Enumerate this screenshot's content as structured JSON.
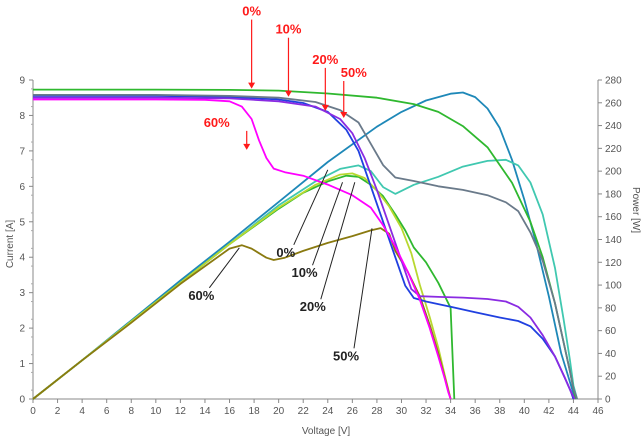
{
  "chart_data": {
    "type": "line",
    "title": "",
    "xlabel": "Voltage [V]",
    "ylabel": "Current [A]",
    "y2label": "Power [W]",
    "xlim": [
      0,
      46
    ],
    "ylim": [
      0,
      9
    ],
    "y2lim": [
      0,
      280
    ],
    "x_ticks": [
      "0",
      "2",
      "4",
      "6",
      "8",
      "10",
      "12",
      "14",
      "16",
      "18",
      "20",
      "22",
      "24",
      "26",
      "28",
      "30",
      "32",
      "34",
      "36",
      "38",
      "40",
      "42",
      "44",
      "46"
    ],
    "y_ticks": [
      "0",
      "1",
      "2",
      "3",
      "4",
      "5",
      "6",
      "7",
      "8",
      "9"
    ],
    "y2_ticks": [
      "0",
      "20",
      "40",
      "60",
      "80",
      "100",
      "120",
      "140",
      "160",
      "180",
      "200",
      "220",
      "240",
      "260",
      "280"
    ],
    "grid": false,
    "iv_curves": [
      {
        "shading": "0%",
        "color": "#2fb82f",
        "points": [
          [
            0,
            8.73
          ],
          [
            10,
            8.73
          ],
          [
            16,
            8.72
          ],
          [
            20,
            8.7
          ],
          [
            24,
            8.62
          ],
          [
            28,
            8.5
          ],
          [
            31,
            8.32
          ],
          [
            33,
            8.1
          ],
          [
            35,
            7.7
          ],
          [
            37,
            7.1
          ],
          [
            39,
            6.1
          ],
          [
            40.5,
            5.0
          ],
          [
            41.5,
            4.0
          ],
          [
            42.5,
            2.7
          ],
          [
            43.2,
            1.6
          ],
          [
            43.7,
            0.8
          ],
          [
            44,
            0.3
          ],
          [
            44.2,
            0
          ]
        ]
      },
      {
        "shading": "10%",
        "color": "#2040e0",
        "points": [
          [
            0,
            8.55
          ],
          [
            10,
            8.55
          ],
          [
            16,
            8.52
          ],
          [
            20,
            8.45
          ],
          [
            22,
            8.35
          ],
          [
            24,
            8.1
          ],
          [
            25.5,
            7.6
          ],
          [
            26.5,
            7.0
          ],
          [
            27.5,
            6.0
          ],
          [
            28.5,
            5.0
          ],
          [
            29.5,
            4.0
          ],
          [
            30.3,
            3.2
          ],
          [
            31,
            2.85
          ],
          [
            32,
            2.75
          ],
          [
            34,
            2.6
          ],
          [
            36,
            2.45
          ],
          [
            38,
            2.3
          ],
          [
            39.5,
            2.2
          ],
          [
            40.5,
            2.05
          ],
          [
            41.5,
            1.7
          ],
          [
            42.5,
            1.2
          ],
          [
            43.3,
            0.6
          ],
          [
            43.8,
            0.2
          ],
          [
            44,
            0
          ]
        ]
      },
      {
        "shading": "20%",
        "color": "#6a7a8a",
        "points": [
          [
            0,
            8.58
          ],
          [
            10,
            8.58
          ],
          [
            16,
            8.55
          ],
          [
            20,
            8.5
          ],
          [
            23,
            8.38
          ],
          [
            25,
            8.15
          ],
          [
            26.5,
            7.8
          ],
          [
            27.5,
            7.2
          ],
          [
            28.5,
            6.6
          ],
          [
            29.5,
            6.25
          ],
          [
            31,
            6.15
          ],
          [
            33,
            6.0
          ],
          [
            35,
            5.9
          ],
          [
            37,
            5.75
          ],
          [
            38.5,
            5.55
          ],
          [
            39.5,
            5.3
          ],
          [
            40.5,
            4.7
          ],
          [
            41.5,
            3.9
          ],
          [
            42.5,
            2.7
          ],
          [
            43.2,
            1.6
          ],
          [
            43.7,
            0.8
          ],
          [
            44,
            0.3
          ],
          [
            44.3,
            0
          ]
        ]
      },
      {
        "shading": "50%",
        "color": "#8a2be2",
        "points": [
          [
            0,
            8.5
          ],
          [
            10,
            8.5
          ],
          [
            16,
            8.48
          ],
          [
            20,
            8.4
          ],
          [
            23,
            8.25
          ],
          [
            25,
            7.9
          ],
          [
            26,
            7.5
          ],
          [
            27,
            6.8
          ],
          [
            28,
            5.9
          ],
          [
            29,
            4.9
          ],
          [
            30,
            3.9
          ],
          [
            30.8,
            3.1
          ],
          [
            31.5,
            2.9
          ],
          [
            33,
            2.88
          ],
          [
            35,
            2.86
          ],
          [
            37,
            2.82
          ],
          [
            38.5,
            2.75
          ],
          [
            39.5,
            2.6
          ],
          [
            40.5,
            2.3
          ],
          [
            41.5,
            1.8
          ],
          [
            42.5,
            1.2
          ],
          [
            43.3,
            0.6
          ],
          [
            43.8,
            0.2
          ],
          [
            44.1,
            0
          ]
        ]
      },
      {
        "shading": "60%",
        "color": "#ff00ff",
        "points": [
          [
            0,
            8.45
          ],
          [
            10,
            8.45
          ],
          [
            14,
            8.44
          ],
          [
            16,
            8.4
          ],
          [
            17,
            8.25
          ],
          [
            17.8,
            7.9
          ],
          [
            18.4,
            7.3
          ],
          [
            19,
            6.8
          ],
          [
            19.6,
            6.5
          ],
          [
            20.5,
            6.4
          ],
          [
            22,
            6.3
          ],
          [
            24,
            6.05
          ],
          [
            26,
            5.75
          ],
          [
            27.5,
            5.4
          ],
          [
            28.5,
            4.9
          ],
          [
            29.5,
            4.3
          ],
          [
            30.5,
            3.6
          ],
          [
            31.5,
            2.8
          ],
          [
            32.3,
            2.0
          ],
          [
            33,
            1.2
          ],
          [
            33.5,
            0.6
          ],
          [
            33.8,
            0.2
          ],
          [
            34,
            0
          ]
        ]
      }
    ],
    "pv_curves": [
      {
        "shading": "0%",
        "color": "#1e88b8",
        "points": [
          [
            0,
            0
          ],
          [
            4,
            34
          ],
          [
            8,
            69
          ],
          [
            12,
            104
          ],
          [
            16,
            138
          ],
          [
            20,
            173
          ],
          [
            24,
            208
          ],
          [
            28,
            239
          ],
          [
            30,
            252
          ],
          [
            32,
            262
          ],
          [
            34,
            268
          ],
          [
            35,
            269
          ],
          [
            36,
            265
          ],
          [
            37,
            255
          ],
          [
            38,
            238
          ],
          [
            39,
            210
          ],
          [
            40,
            175
          ],
          [
            41,
            135
          ],
          [
            42,
            90
          ],
          [
            43,
            40
          ],
          [
            44,
            5
          ],
          [
            44.2,
            0
          ]
        ]
      },
      {
        "shading": "10%",
        "color": "#2fb82f",
        "points": [
          [
            0,
            0
          ],
          [
            4,
            34
          ],
          [
            8,
            68
          ],
          [
            12,
            102
          ],
          [
            16,
            136
          ],
          [
            20,
            167
          ],
          [
            22,
            181
          ],
          [
            24,
            191
          ],
          [
            25.5,
            196
          ],
          [
            26.5,
            195
          ],
          [
            27.5,
            188
          ],
          [
            28.5,
            178
          ],
          [
            29.5,
            162
          ],
          [
            30.3,
            148
          ],
          [
            31,
            133
          ],
          [
            32,
            120
          ],
          [
            33,
            102
          ],
          [
            34,
            80
          ],
          [
            34.3,
            0
          ]
        ]
      },
      {
        "shading": "20%",
        "color": "#40c8b0",
        "points": [
          [
            0,
            0
          ],
          [
            4,
            34
          ],
          [
            8,
            68
          ],
          [
            12,
            102
          ],
          [
            16,
            136
          ],
          [
            20,
            170
          ],
          [
            23,
            191
          ],
          [
            25,
            202
          ],
          [
            26.5,
            205
          ],
          [
            27.5,
            200
          ],
          [
            28.5,
            186
          ],
          [
            29.5,
            180
          ],
          [
            31,
            188
          ],
          [
            33,
            195
          ],
          [
            35,
            204
          ],
          [
            37,
            209
          ],
          [
            38.5,
            210
          ],
          [
            39.5,
            205
          ],
          [
            40.5,
            190
          ],
          [
            41.5,
            162
          ],
          [
            42.5,
            115
          ],
          [
            43.2,
            70
          ],
          [
            43.7,
            35
          ],
          [
            44,
            12
          ],
          [
            44.3,
            0
          ]
        ]
      },
      {
        "shading": "50%",
        "color": "#b8d830",
        "points": [
          [
            0,
            0
          ],
          [
            4,
            34
          ],
          [
            8,
            68
          ],
          [
            12,
            102
          ],
          [
            16,
            136
          ],
          [
            20,
            168
          ],
          [
            23,
            188
          ],
          [
            25,
            197
          ],
          [
            26,
            198
          ],
          [
            27,
            194
          ],
          [
            28,
            183
          ],
          [
            29,
            169
          ],
          [
            30,
            150
          ],
          [
            30.8,
            128
          ],
          [
            31.5,
            100
          ],
          [
            32.3,
            72
          ],
          [
            33,
            45
          ],
          [
            33.5,
            22
          ],
          [
            34,
            0
          ]
        ]
      },
      {
        "shading": "60%",
        "color": "#8a7a10",
        "points": [
          [
            0,
            0
          ],
          [
            4,
            34
          ],
          [
            8,
            67
          ],
          [
            12,
            101
          ],
          [
            16,
            132
          ],
          [
            17,
            135
          ],
          [
            17.8,
            132
          ],
          [
            18.4,
            128
          ],
          [
            19,
            124
          ],
          [
            19.6,
            122
          ],
          [
            20.5,
            124
          ],
          [
            22,
            130
          ],
          [
            24,
            137
          ],
          [
            26,
            143
          ],
          [
            27.5,
            148
          ],
          [
            28.3,
            150
          ],
          [
            29,
            145
          ],
          [
            29.5,
            130
          ],
          [
            30.5,
            112
          ],
          [
            31.5,
            90
          ],
          [
            32.3,
            65
          ],
          [
            33,
            40
          ],
          [
            33.5,
            20
          ],
          [
            34,
            0
          ]
        ]
      }
    ],
    "annotations": [
      {
        "text": "0%",
        "color": "red",
        "x": 17.8,
        "y": 8.73
      },
      {
        "text": "10%",
        "color": "red",
        "x": 20.8,
        "y": 8.5
      },
      {
        "text": "20%",
        "color": "red",
        "x": 23.8,
        "y": 8.1
      },
      {
        "text": "50%",
        "color": "red",
        "x": 25.3,
        "y": 7.9
      },
      {
        "text": "60%",
        "color": "red",
        "x": 17.4,
        "y": 7.0
      },
      {
        "text": "0%",
        "color": "black",
        "x": 24,
        "y": 6.55
      },
      {
        "text": "10%",
        "color": "black",
        "x": 25.2,
        "y": 6.2
      },
      {
        "text": "20%",
        "color": "black",
        "x": 26.2,
        "y": 6.2
      },
      {
        "text": "50%",
        "color": "black",
        "x": 27.6,
        "y": 4.9
      },
      {
        "text": "60%",
        "color": "black",
        "x": 16.8,
        "y": 4.35
      }
    ]
  }
}
